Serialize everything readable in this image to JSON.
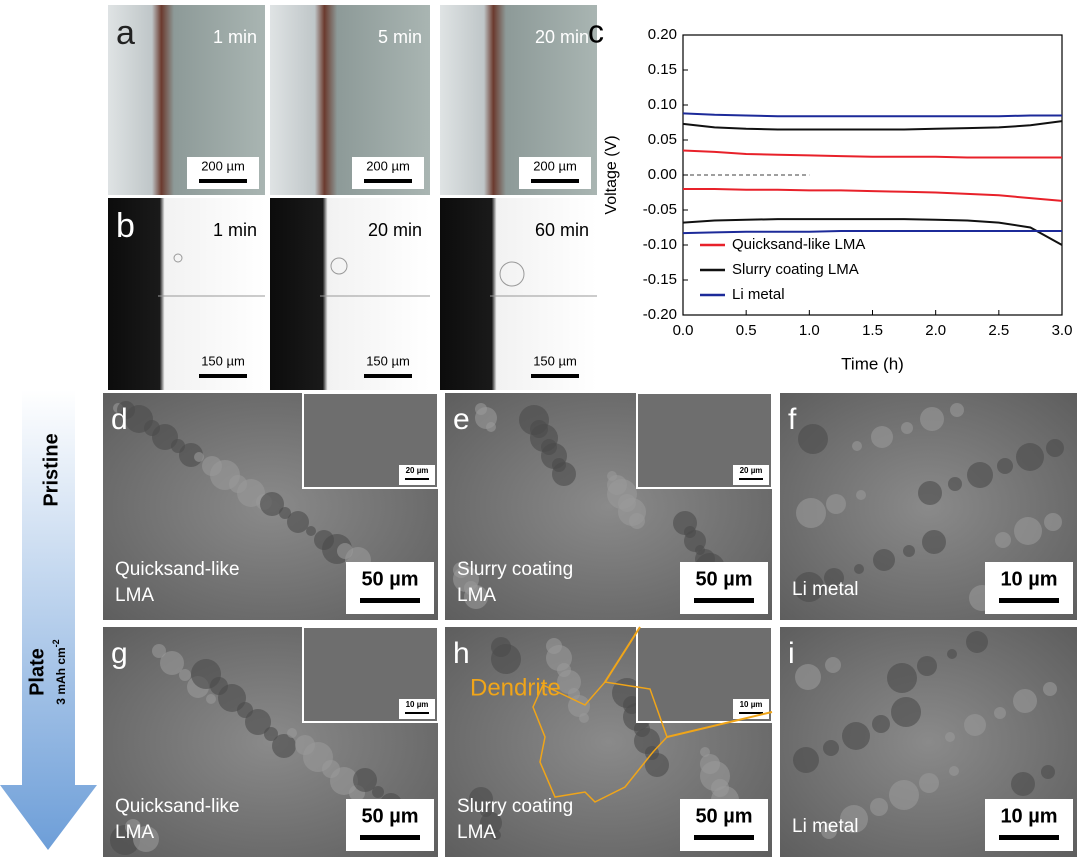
{
  "rows_top": [
    {
      "label": "a",
      "images": [
        {
          "time": "1 min",
          "scale": "200 µm"
        },
        {
          "time": "5 min",
          "scale": "200 µm"
        },
        {
          "time": "20 min",
          "scale": "200 µm"
        }
      ]
    },
    {
      "label": "b",
      "images": [
        {
          "time": "1 min",
          "scale": "150 µm"
        },
        {
          "time": "20 min",
          "scale": "150 µm"
        },
        {
          "time": "60 min",
          "scale": "150 µm"
        }
      ]
    }
  ],
  "rows_sem": [
    {
      "label": "d",
      "caption": [
        "Quicksand-like",
        "LMA"
      ],
      "scale": "50 µm",
      "inset_scale": "20 µm"
    },
    {
      "label": "e",
      "caption": [
        "Slurry coating",
        "LMA"
      ],
      "scale": "50 µm",
      "inset_scale": "20 µm"
    },
    {
      "label": "f",
      "caption": [
        "Li metal"
      ],
      "scale": "10 µm"
    },
    {
      "label": "g",
      "caption": [
        "Quicksand-like",
        "LMA"
      ],
      "scale": "50 µm",
      "inset_scale": "10 µm"
    },
    {
      "label": "h",
      "caption": [
        "Slurry coating",
        "LMA"
      ],
      "scale": "50 µm",
      "inset_scale": "10 µm",
      "annotation": "Dendrite"
    },
    {
      "label": "i",
      "caption": [
        "Li metal"
      ],
      "scale": "10 µm"
    }
  ],
  "side": {
    "top": "Pristine",
    "bottom": "Plate",
    "unit": "3 mAh cm",
    "unit_sup": "-2"
  },
  "chart_data": {
    "type": "line",
    "label": "c",
    "xlabel": "Time (h)",
    "ylabel": "Voltage (V)",
    "x": [
      0,
      0.25,
      0.5,
      0.75,
      1,
      1.25,
      1.5,
      1.75,
      2,
      2.25,
      2.5,
      2.75,
      3
    ],
    "series": [
      {
        "name": "Quicksand-like LMA",
        "color": "#e8212a",
        "values": [
          0.035,
          0.033,
          0.03,
          0.029,
          0.028,
          0.027,
          0.026,
          0.026,
          0.026,
          0.025,
          0.025,
          0.025,
          0.025
        ],
        "lower": [
          -0.02,
          -0.02,
          -0.021,
          -0.021,
          -0.022,
          -0.022,
          -0.023,
          -0.024,
          -0.025,
          -0.027,
          -0.029,
          -0.033,
          -0.037
        ]
      },
      {
        "name": "Slurry coating LMA",
        "color": "#111111",
        "values": [
          0.073,
          0.068,
          0.066,
          0.065,
          0.065,
          0.065,
          0.065,
          0.065,
          0.066,
          0.067,
          0.068,
          0.071,
          0.077
        ],
        "lower": [
          -0.068,
          -0.065,
          -0.064,
          -0.063,
          -0.063,
          -0.063,
          -0.063,
          -0.063,
          -0.064,
          -0.065,
          -0.068,
          -0.075,
          -0.1
        ]
      },
      {
        "name": "Li metal",
        "color": "#1c2a99",
        "values": [
          0.088,
          0.086,
          0.085,
          0.084,
          0.084,
          0.084,
          0.084,
          0.084,
          0.084,
          0.084,
          0.084,
          0.085,
          0.085
        ],
        "lower": [
          -0.083,
          -0.082,
          -0.081,
          -0.081,
          -0.081,
          -0.08,
          -0.08,
          -0.08,
          -0.08,
          -0.08,
          -0.08,
          -0.08,
          -0.08
        ]
      }
    ],
    "reference_line": {
      "y": 0,
      "x": [
        0,
        1
      ]
    },
    "xlim": [
      0,
      3
    ],
    "ylim": [
      -0.2,
      0.2
    ],
    "xticks": [
      {
        "value": 0,
        "label": "0.0"
      },
      0.5,
      {
        "value": 1,
        "label": "1.0"
      },
      1.5,
      {
        "value": 2,
        "label": "2.0"
      },
      2.5,
      {
        "value": 3,
        "label": "3.0"
      }
    ],
    "yticks": [
      {
        "value": -0.2,
        "label": "-0.20"
      },
      {
        "value": -0.15,
        "label": "-0.15"
      },
      {
        "value": -0.1,
        "label": "-0.10"
      },
      {
        "value": -0.05,
        "label": "-0.05"
      },
      {
        "value": 0,
        "label": "0.00"
      },
      {
        "value": 0.05,
        "label": "0.05"
      },
      {
        "value": 0.1,
        "label": "0.10"
      },
      {
        "value": 0.15,
        "label": "0.15"
      },
      {
        "value": 0.2,
        "label": "0.20"
      }
    ],
    "legend": "lower-left"
  }
}
